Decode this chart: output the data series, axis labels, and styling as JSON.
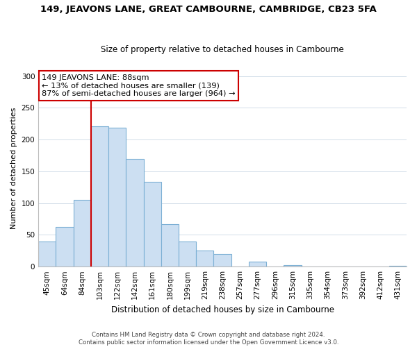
{
  "title": "149, JEAVONS LANE, GREAT CAMBOURNE, CAMBRIDGE, CB23 5FA",
  "subtitle": "Size of property relative to detached houses in Cambourne",
  "xlabel": "Distribution of detached houses by size in Cambourne",
  "ylabel": "Number of detached properties",
  "bar_labels": [
    "45sqm",
    "64sqm",
    "84sqm",
    "103sqm",
    "122sqm",
    "142sqm",
    "161sqm",
    "180sqm",
    "199sqm",
    "219sqm",
    "238sqm",
    "257sqm",
    "277sqm",
    "296sqm",
    "315sqm",
    "335sqm",
    "354sqm",
    "373sqm",
    "392sqm",
    "412sqm",
    "431sqm"
  ],
  "bar_values": [
    40,
    63,
    105,
    221,
    219,
    170,
    133,
    67,
    39,
    25,
    20,
    0,
    8,
    0,
    2,
    0,
    0,
    0,
    0,
    0,
    1
  ],
  "bar_color": "#ccdff2",
  "bar_edge_color": "#7bafd4",
  "vline_x_idx": 2,
  "vline_color": "#cc0000",
  "annotation_title": "149 JEAVONS LANE: 88sqm",
  "annotation_line1": "← 13% of detached houses are smaller (139)",
  "annotation_line2": "87% of semi-detached houses are larger (964) →",
  "annotation_box_edge": "#cc0000",
  "ylim": [
    0,
    310
  ],
  "yticks": [
    0,
    50,
    100,
    150,
    200,
    250,
    300
  ],
  "footer1": "Contains HM Land Registry data © Crown copyright and database right 2024.",
  "footer2": "Contains public sector information licensed under the Open Government Licence v3.0."
}
